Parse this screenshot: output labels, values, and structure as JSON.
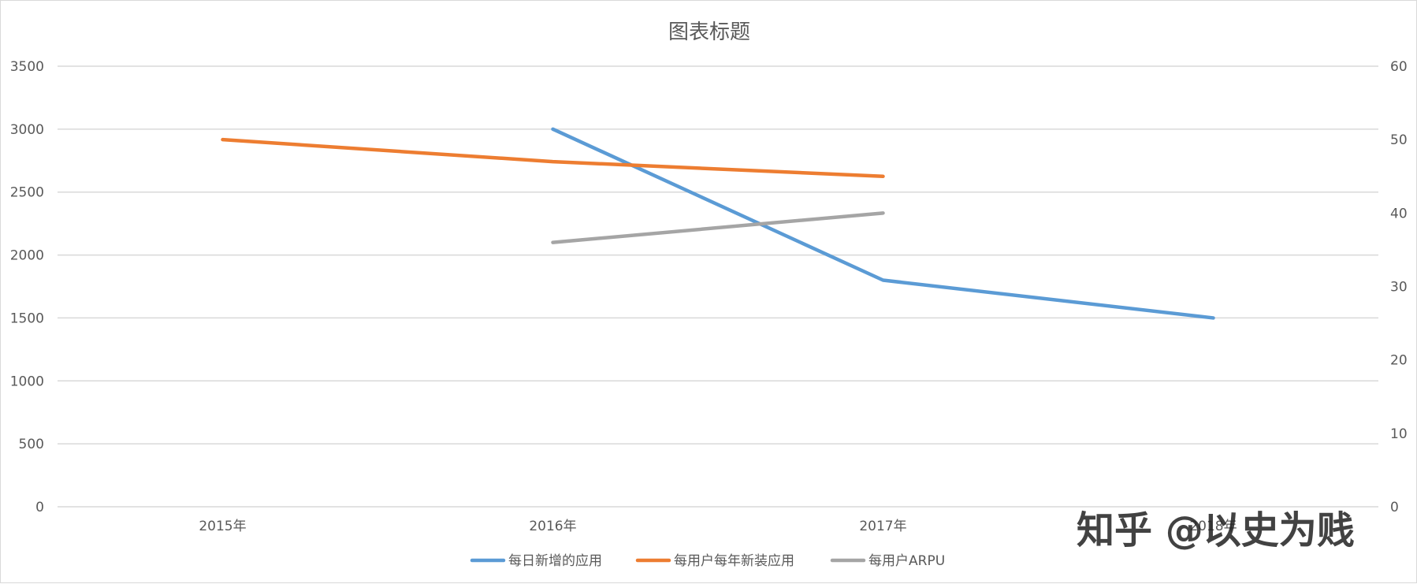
{
  "chart_data": {
    "type": "line",
    "title": "图表标题",
    "categories": [
      "2015年",
      "2016年",
      "2017年",
      "2018年"
    ],
    "y_left": {
      "min": 0,
      "max": 3500,
      "ticks": [
        0,
        500,
        1000,
        1500,
        2000,
        2500,
        3000,
        3500
      ]
    },
    "y_right": {
      "min": 0,
      "max": 60,
      "ticks": [
        0,
        10,
        20,
        30,
        40,
        50,
        60
      ]
    },
    "grid": true,
    "legend_position": "bottom",
    "series": [
      {
        "name": "每日新增的应用",
        "axis": "left",
        "color": "#5B9BD5",
        "values": [
          null,
          3000,
          1800,
          1500
        ]
      },
      {
        "name": "每用户每年新装应用",
        "axis": "right",
        "color": "#ED7D31",
        "values": [
          50,
          47,
          45,
          null
        ]
      },
      {
        "name": "每用户ARPU",
        "axis": "right",
        "color": "#A5A5A5",
        "values": [
          null,
          36,
          40,
          null
        ]
      }
    ]
  },
  "watermark": "知乎 @以史为贱"
}
